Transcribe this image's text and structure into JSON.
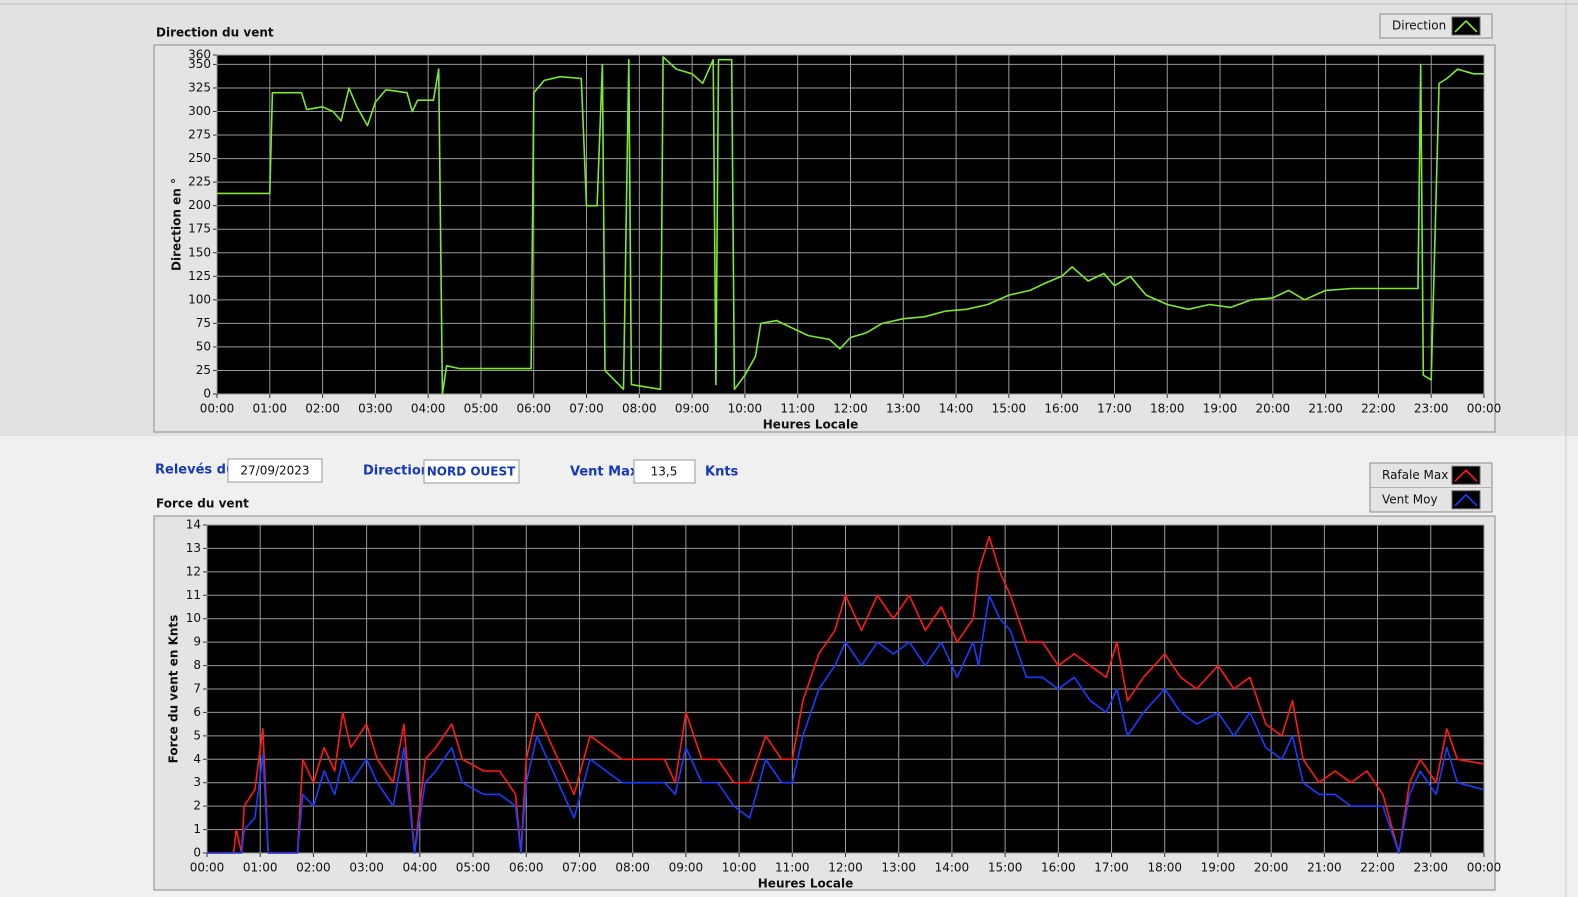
{
  "controls": {
    "date_label": "Relevés du",
    "date": "27/09/2023",
    "direction_label": "Direction",
    "direction": "NORD OUEST",
    "vent_max_label": "Vent Max",
    "vent_max": "13,5",
    "unit": "Knts"
  },
  "chart_data": [
    {
      "type": "line",
      "title": "Direction du vent",
      "x_label": "Heures Locale",
      "y_label": "Direction en °",
      "xlim": [
        0,
        24
      ],
      "xticks": [
        {
          "value": 0,
          "label": "00:00"
        },
        {
          "value": 1,
          "label": "01:00"
        },
        {
          "value": 2,
          "label": "02:00"
        },
        {
          "value": 3,
          "label": "03:00"
        },
        {
          "value": 4,
          "label": "04:00"
        },
        {
          "value": 5,
          "label": "05:00"
        },
        {
          "value": 6,
          "label": "06:00"
        },
        {
          "value": 7,
          "label": "07:00"
        },
        {
          "value": 8,
          "label": "08:00"
        },
        {
          "value": 9,
          "label": "09:00"
        },
        {
          "value": 10,
          "label": "10:00"
        },
        {
          "value": 11,
          "label": "11:00"
        },
        {
          "value": 12,
          "label": "12:00"
        },
        {
          "value": 13,
          "label": "13:00"
        },
        {
          "value": 14,
          "label": "14:00"
        },
        {
          "value": 15,
          "label": "15:00"
        },
        {
          "value": 16,
          "label": "16:00"
        },
        {
          "value": 17,
          "label": "17:00"
        },
        {
          "value": 18,
          "label": "18:00"
        },
        {
          "value": 19,
          "label": "19:00"
        },
        {
          "value": 20,
          "label": "20:00"
        },
        {
          "value": 21,
          "label": "21:00"
        },
        {
          "value": 22,
          "label": "22:00"
        },
        {
          "value": 23,
          "label": "23:00"
        },
        {
          "value": 24,
          "label": "00:00"
        }
      ],
      "ylim": [
        0,
        360
      ],
      "yticks": [
        0,
        25,
        50,
        75,
        100,
        125,
        150,
        175,
        200,
        225,
        250,
        275,
        300,
        325,
        350,
        360
      ],
      "grid": true,
      "x": [
        0,
        1,
        1.05,
        1.6,
        1.7,
        2,
        2.2,
        2.35,
        2.5,
        2.65,
        2.85,
        3,
        3.2,
        3.6,
        3.7,
        3.8,
        4.1,
        4.2,
        4.27,
        4.35,
        4.6,
        5.95,
        6,
        6.2,
        6.5,
        6.9,
        7,
        7.2,
        7.3,
        7.35,
        7.7,
        7.8,
        7.85,
        8.4,
        8.45,
        8.7,
        9,
        9.2,
        9.4,
        9.45,
        9.5,
        9.75,
        9.8,
        10,
        10.2,
        10.3,
        10.6,
        10.9,
        11.2,
        11.6,
        11.8,
        12,
        12.3,
        12.6,
        13,
        13.4,
        13.8,
        14.2,
        14.6,
        15,
        15.4,
        15.7,
        16,
        16.2,
        16.5,
        16.8,
        17,
        17.3,
        17.6,
        18,
        18.4,
        18.8,
        19.2,
        19.6,
        20,
        20.3,
        20.6,
        21,
        21.5,
        22.5,
        22.75,
        22.8,
        22.85,
        23,
        23.15,
        23.3,
        23.5,
        23.8,
        24
      ],
      "series": [
        {
          "name": "Direction",
          "color": "#7fe82e",
          "values": [
            213,
            213,
            320,
            320,
            302,
            305,
            300,
            290,
            325,
            305,
            285,
            310,
            323,
            320,
            300,
            312,
            312,
            345,
            0,
            30,
            27,
            27,
            320,
            333,
            337,
            335,
            200,
            200,
            350,
            25,
            5,
            355,
            10,
            5,
            358,
            345,
            340,
            330,
            355,
            10,
            355,
            355,
            5,
            20,
            40,
            75,
            78,
            70,
            62,
            58,
            48,
            60,
            65,
            75,
            80,
            82,
            88,
            90,
            95,
            105,
            110,
            118,
            125,
            135,
            120,
            128,
            115,
            125,
            105,
            95,
            90,
            95,
            92,
            100,
            102,
            110,
            100,
            110,
            112,
            112,
            112,
            350,
            20,
            15,
            330,
            335,
            345,
            340,
            340
          ]
        }
      ]
    },
    {
      "type": "line",
      "title": "Force du vent",
      "x_label": "Heures Locale",
      "y_label": "Force du vent en Knts",
      "xlim": [
        0,
        24
      ],
      "xticks": [
        {
          "value": 0,
          "label": "00:00"
        },
        {
          "value": 1,
          "label": "01:00"
        },
        {
          "value": 2,
          "label": "02:00"
        },
        {
          "value": 3,
          "label": "03:00"
        },
        {
          "value": 4,
          "label": "04:00"
        },
        {
          "value": 5,
          "label": "05:00"
        },
        {
          "value": 6,
          "label": "06:00"
        },
        {
          "value": 7,
          "label": "07:00"
        },
        {
          "value": 8,
          "label": "08:00"
        },
        {
          "value": 9,
          "label": "09:00"
        },
        {
          "value": 10,
          "label": "10:00"
        },
        {
          "value": 11,
          "label": "11:00"
        },
        {
          "value": 12,
          "label": "12:00"
        },
        {
          "value": 13,
          "label": "13:00"
        },
        {
          "value": 14,
          "label": "14:00"
        },
        {
          "value": 15,
          "label": "15:00"
        },
        {
          "value": 16,
          "label": "16:00"
        },
        {
          "value": 17,
          "label": "17:00"
        },
        {
          "value": 18,
          "label": "18:00"
        },
        {
          "value": 19,
          "label": "19:00"
        },
        {
          "value": 20,
          "label": "20:00"
        },
        {
          "value": 21,
          "label": "21:00"
        },
        {
          "value": 22,
          "label": "22:00"
        },
        {
          "value": 23,
          "label": "23:00"
        },
        {
          "value": 24,
          "label": "00:00"
        }
      ],
      "ylim": [
        0,
        14
      ],
      "yticks": [
        0,
        1,
        2,
        3,
        4,
        5,
        6,
        7,
        8,
        9,
        10,
        11,
        12,
        13,
        14
      ],
      "grid": true,
      "x": [
        0,
        0.5,
        0.55,
        0.65,
        0.7,
        0.9,
        1.05,
        1.15,
        1.7,
        1.8,
        2,
        2.2,
        2.4,
        2.55,
        2.7,
        3,
        3.2,
        3.5,
        3.7,
        3.9,
        4.1,
        4.3,
        4.6,
        4.8,
        5.2,
        5.5,
        5.8,
        5.9,
        6,
        6.2,
        6.4,
        6.7,
        6.9,
        7.2,
        7.5,
        7.8,
        8.2,
        8.6,
        8.8,
        9,
        9.3,
        9.6,
        9.9,
        10.2,
        10.5,
        10.8,
        11,
        11.2,
        11.5,
        11.8,
        12,
        12.3,
        12.6,
        12.9,
        13.2,
        13.5,
        13.8,
        14.1,
        14.4,
        14.5,
        14.7,
        14.9,
        15.1,
        15.4,
        15.7,
        16,
        16.3,
        16.6,
        16.9,
        17.1,
        17.3,
        17.6,
        18,
        18.3,
        18.6,
        19,
        19.3,
        19.6,
        19.9,
        20.2,
        20.4,
        20.6,
        20.9,
        21.2,
        21.5,
        21.8,
        22.1,
        22.4,
        22.6,
        22.8,
        23.1,
        23.3,
        23.5,
        24
      ],
      "series": [
        {
          "name": "Rafale Max",
          "color": "#ff1a1a",
          "values": [
            0,
            0,
            1,
            0,
            2,
            2.7,
            5.3,
            0,
            0,
            4,
            3,
            4.5,
            3.5,
            6,
            4.5,
            5.5,
            4,
            3,
            5.5,
            0,
            4,
            4.5,
            5.5,
            4,
            3.5,
            3.5,
            2.5,
            0,
            4,
            6,
            5,
            3.5,
            2.5,
            5,
            4.5,
            4,
            4,
            4,
            3,
            6,
            4,
            4,
            3,
            3,
            5,
            4,
            4,
            6.5,
            8.5,
            9.5,
            11,
            9.5,
            11,
            10,
            11,
            9.5,
            10.5,
            9,
            10,
            12,
            13.5,
            12,
            11,
            9,
            9,
            8,
            8.5,
            8,
            7.5,
            9,
            6.5,
            7.5,
            8.5,
            7.5,
            7,
            8,
            7,
            7.5,
            5.5,
            5,
            6.5,
            4,
            3,
            3.5,
            3,
            3.5,
            2.5,
            0,
            3,
            4,
            3,
            5.3,
            4,
            3.8
          ]
        },
        {
          "name": "Vent Moy",
          "color": "#1a3cff",
          "values": [
            0,
            0,
            0,
            0,
            1,
            1.5,
            4.2,
            0,
            0,
            2.5,
            2,
            3.5,
            2.5,
            4,
            3,
            4,
            3,
            2,
            4.5,
            0,
            3,
            3.5,
            4.5,
            3,
            2.5,
            2.5,
            2,
            0,
            3,
            5,
            4,
            2.5,
            1.5,
            4,
            3.5,
            3,
            3,
            3,
            2.5,
            4.5,
            3,
            3,
            2,
            1.5,
            4,
            3,
            3,
            5,
            7,
            8,
            9,
            8,
            9,
            8.5,
            9,
            8,
            9,
            7.5,
            9,
            8,
            11,
            10,
            9.5,
            7.5,
            7.5,
            7,
            7.5,
            6.5,
            6,
            7,
            5,
            6,
            7,
            6,
            5.5,
            6,
            5,
            6,
            4.5,
            4,
            5,
            3,
            2.5,
            2.5,
            2,
            2,
            2,
            0,
            2.5,
            3.5,
            2.5,
            4.5,
            3,
            2.7
          ]
        }
      ]
    }
  ]
}
